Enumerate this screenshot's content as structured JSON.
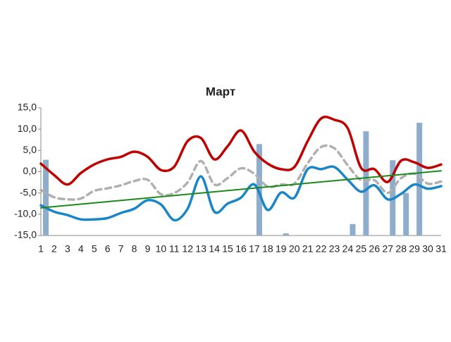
{
  "chart_data": {
    "type": "line",
    "title": "Март",
    "categories": [
      "1",
      "2",
      "3",
      "4",
      "5",
      "6",
      "7",
      "8",
      "9",
      "10",
      "11",
      "12",
      "13",
      "14",
      "15",
      "16",
      "17",
      "18",
      "19",
      "20",
      "21",
      "22",
      "23",
      "24",
      "25",
      "26",
      "27",
      "28",
      "29",
      "30",
      "31"
    ],
    "ylim": [
      -15,
      15
    ],
    "yticks": [
      {
        "value": -15,
        "label": "-15,0"
      },
      {
        "value": -10,
        "label": "-10,0"
      },
      {
        "value": -5,
        "label": "-5,0"
      },
      {
        "value": 0,
        "label": "0,0"
      },
      {
        "value": 5,
        "label": "5,0"
      },
      {
        "value": 10,
        "label": "10,0"
      },
      {
        "value": 15,
        "label": "15,0"
      }
    ],
    "series": [
      {
        "type": "bar",
        "color": "#8eaccc",
        "values": [
          2.8,
          null,
          null,
          null,
          null,
          null,
          null,
          null,
          null,
          null,
          null,
          null,
          null,
          null,
          null,
          null,
          6.5,
          null,
          -14.5,
          null,
          null,
          null,
          null,
          -12.3,
          9.5,
          null,
          2.7,
          -5,
          11.5,
          null,
          null
        ]
      },
      {
        "type": "line",
        "color": "#c00000",
        "dash": false,
        "values": [
          1.9,
          -0.8,
          -3,
          -0.3,
          1.7,
          2.9,
          3.5,
          4.7,
          3.5,
          0.4,
          1.2,
          7.2,
          7.9,
          2.9,
          6,
          9.7,
          4.7,
          1.9,
          0.6,
          1.1,
          7.2,
          12.5,
          12.2,
          10.2,
          0.9,
          0.6,
          -2.4,
          2.6,
          2.2,
          0.9,
          1.7
        ]
      },
      {
        "type": "line",
        "color": "#b0b0b0",
        "dash": true,
        "values": [
          -4.3,
          -6,
          -6.5,
          -6.3,
          -4.5,
          -3.9,
          -3.2,
          -2.2,
          -1.9,
          -5.3,
          -5,
          -2.5,
          2.5,
          -3,
          -1.5,
          0.8,
          -0.5,
          -3.5,
          -3,
          -2.8,
          2,
          5.8,
          5.5,
          1.5,
          -2,
          -2,
          -5,
          -1.5,
          -0.5,
          -2.8,
          -2.3
        ]
      },
      {
        "type": "line",
        "color": "#1a86c8",
        "dash": false,
        "values": [
          -7.9,
          -9.4,
          -10.2,
          -11.2,
          -11.2,
          -10.9,
          -9.7,
          -8.7,
          -6.7,
          -7.7,
          -11.4,
          -8.7,
          -1.1,
          -9.4,
          -7.5,
          -6.1,
          -3,
          -9,
          -4.9,
          -6.1,
          0.6,
          0.6,
          1.1,
          -1.9,
          -4.7,
          -3.2,
          -6.5,
          -5.2,
          -3,
          -4,
          -3.4
        ]
      },
      {
        "type": "trend",
        "color": "#1e8a1e",
        "dash": false,
        "values": [
          -8.5,
          -8.21,
          -7.92,
          -7.63,
          -7.34,
          -7.05,
          -6.76,
          -6.47,
          -6.18,
          -5.89,
          -5.6,
          -5.31,
          -5.02,
          -4.73,
          -4.44,
          -4.15,
          -3.86,
          -3.57,
          -3.28,
          -2.99,
          -2.7,
          -2.41,
          -2.12,
          -1.83,
          -1.54,
          -1.25,
          -0.96,
          -0.67,
          -0.38,
          -0.09,
          0.2
        ]
      }
    ]
  }
}
